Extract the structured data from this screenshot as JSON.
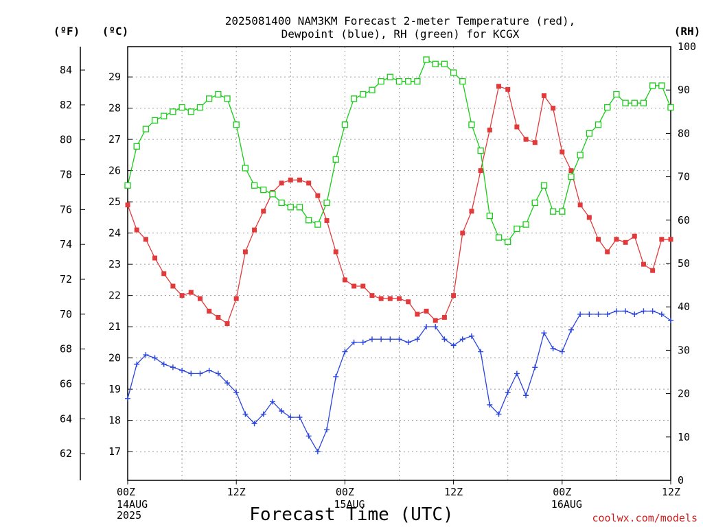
{
  "title": {
    "line1": "2025081400 NAM3KM Forecast 2-meter Temperature (red),",
    "line2": "Dewpoint (blue), RH (green) for KCGX"
  },
  "credit": "coolwx.com/models",
  "colors": {
    "temperature": "#e23a3a",
    "dewpoint": "#2a45de",
    "rh": "#18cc18"
  },
  "chart_data": {
    "type": "line",
    "xlabel": "Forecast Time (UTC)",
    "x_ticks": [
      {
        "hour": 0,
        "label": "00Z",
        "sub": [
          "14AUG",
          "2025"
        ]
      },
      {
        "hour": 12,
        "label": "12Z",
        "sub": []
      },
      {
        "hour": 24,
        "label": "00Z",
        "sub": [
          "15AUG"
        ]
      },
      {
        "hour": 36,
        "label": "12Z",
        "sub": []
      },
      {
        "hour": 48,
        "label": "00Z",
        "sub": [
          "16AUG"
        ]
      },
      {
        "hour": 60,
        "label": "12Z",
        "sub": []
      }
    ],
    "xlim": [
      0,
      60
    ],
    "axes": {
      "fahrenheit": {
        "label": "(ºF)",
        "ticks": [
          62,
          64,
          66,
          68,
          70,
          72,
          74,
          76,
          78,
          80,
          82,
          84
        ],
        "range": [
          60.47,
          85.34
        ]
      },
      "celsius": {
        "label": "(ºC)",
        "ticks": [
          17,
          18,
          19,
          20,
          21,
          22,
          23,
          24,
          25,
          26,
          27,
          28,
          29
        ],
        "range": [
          16.08,
          29.97
        ]
      },
      "rh": {
        "label": "(RH)",
        "ticks": [
          0,
          10,
          20,
          30,
          40,
          50,
          60,
          70,
          80,
          90,
          100
        ],
        "range": [
          0,
          100
        ]
      }
    },
    "grid": true,
    "series": [
      {
        "name": "Temperature (red)",
        "axis": "celsius",
        "marker": "filled-square",
        "x": [
          0,
          1,
          2,
          3,
          4,
          5,
          6,
          7,
          8,
          9,
          10,
          11,
          12,
          13,
          14,
          15,
          16,
          17,
          18,
          19,
          20,
          21,
          22,
          23,
          24,
          25,
          26,
          27,
          28,
          29,
          30,
          31,
          32,
          33,
          34,
          35,
          36,
          37,
          38,
          39,
          40,
          41,
          42,
          43,
          44,
          45,
          46,
          47,
          48,
          49,
          50,
          51,
          52,
          53,
          54,
          55,
          56,
          57,
          58,
          59,
          60
        ],
        "values": [
          24.9,
          24.1,
          23.8,
          23.2,
          22.7,
          22.3,
          22.0,
          22.1,
          21.9,
          21.5,
          21.3,
          21.1,
          21.9,
          23.4,
          24.1,
          24.7,
          25.3,
          25.6,
          25.7,
          25.7,
          25.6,
          25.2,
          24.4,
          23.4,
          22.5,
          22.3,
          22.3,
          22.0,
          21.9,
          21.9,
          21.9,
          21.8,
          21.4,
          21.5,
          21.2,
          21.3,
          22.0,
          24.0,
          24.7,
          26.0,
          27.3,
          28.7,
          28.6,
          27.4,
          27.0,
          26.9,
          28.4,
          28.0,
          26.6,
          26.0,
          24.9,
          24.5,
          23.8,
          23.4,
          23.8,
          23.7,
          23.9,
          23.0,
          22.8,
          23.8,
          23.8
        ]
      },
      {
        "name": "Dewpoint (blue)",
        "axis": "celsius",
        "marker": "plus",
        "x": [
          0,
          1,
          2,
          3,
          4,
          5,
          6,
          7,
          8,
          9,
          10,
          11,
          12,
          13,
          14,
          15,
          16,
          17,
          18,
          19,
          20,
          21,
          22,
          23,
          24,
          25,
          26,
          27,
          28,
          29,
          30,
          31,
          32,
          33,
          34,
          35,
          36,
          37,
          38,
          39,
          40,
          41,
          42,
          43,
          44,
          45,
          46,
          47,
          48,
          49,
          50,
          51,
          52,
          53,
          54,
          55,
          56,
          57,
          58,
          59,
          60
        ],
        "values": [
          18.7,
          19.8,
          20.1,
          20.0,
          19.8,
          19.7,
          19.6,
          19.5,
          19.5,
          19.6,
          19.5,
          19.2,
          18.9,
          18.2,
          17.9,
          18.2,
          18.6,
          18.3,
          18.1,
          18.1,
          17.5,
          17.0,
          17.7,
          19.4,
          20.2,
          20.5,
          20.5,
          20.6,
          20.6,
          20.6,
          20.6,
          20.5,
          20.6,
          21.0,
          21.0,
          20.6,
          20.4,
          20.6,
          20.7,
          20.2,
          18.5,
          18.2,
          18.9,
          19.5,
          18.8,
          19.7,
          20.8,
          20.3,
          20.2,
          20.9,
          21.4,
          21.4,
          21.4,
          21.4,
          21.5,
          21.5,
          21.4,
          21.5,
          21.5,
          21.4,
          21.2
        ]
      },
      {
        "name": "RH (green)",
        "axis": "rh",
        "marker": "open-square",
        "x": [
          0,
          1,
          2,
          3,
          4,
          5,
          6,
          7,
          8,
          9,
          10,
          11,
          12,
          13,
          14,
          15,
          16,
          17,
          18,
          19,
          20,
          21,
          22,
          23,
          24,
          25,
          26,
          27,
          28,
          29,
          30,
          31,
          32,
          33,
          34,
          35,
          36,
          37,
          38,
          39,
          40,
          41,
          42,
          43,
          44,
          45,
          46,
          47,
          48,
          49,
          50,
          51,
          52,
          53,
          54,
          55,
          56,
          57,
          58,
          59,
          60
        ],
        "values": [
          68,
          77,
          81,
          83,
          84,
          85,
          86,
          85,
          86,
          88,
          89,
          88,
          82,
          72,
          68,
          67,
          66,
          64,
          63,
          63,
          60,
          59,
          64,
          74,
          82,
          88,
          89,
          90,
          92,
          93,
          92,
          92,
          92,
          97,
          96,
          96,
          94,
          92,
          82,
          76,
          61,
          56,
          55,
          58,
          59,
          64,
          68,
          62,
          62,
          70,
          75,
          80,
          82,
          86,
          89,
          87,
          87,
          87,
          91,
          91,
          86
        ]
      }
    ]
  }
}
